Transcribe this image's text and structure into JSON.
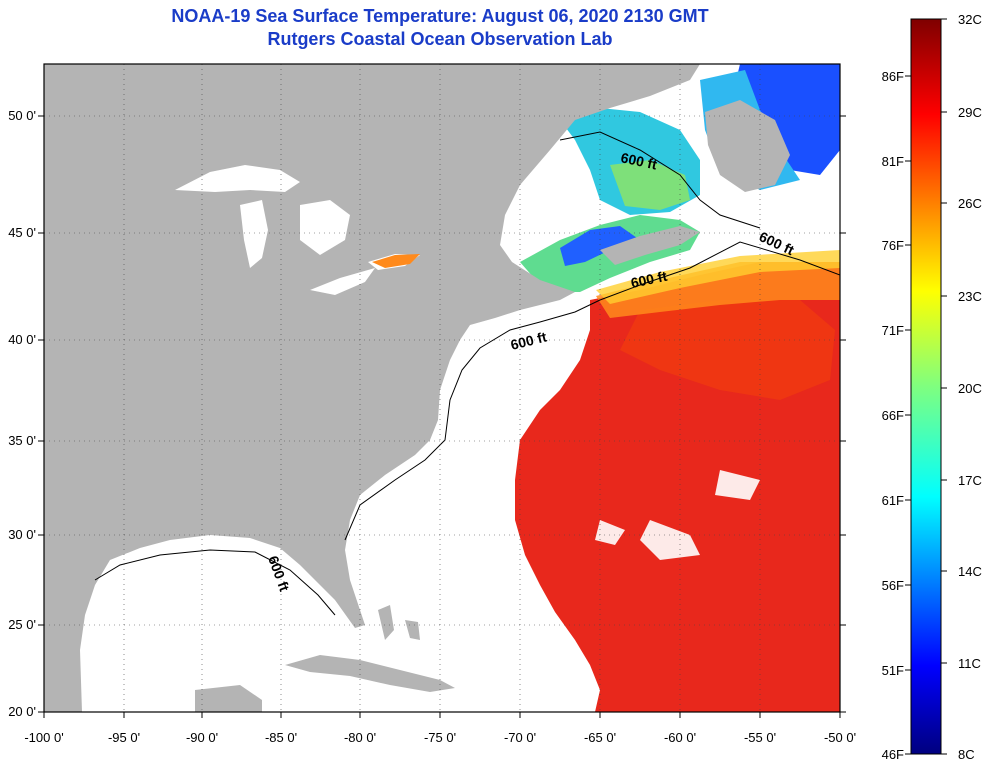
{
  "title": "NOAA-19 Sea Surface Temperature:  August 06, 2020 2130 GMT",
  "subtitle": "Rutgers Coastal Ocean Observation Lab",
  "map": {
    "lon_labels": [
      "-100 0'",
      "-95 0'",
      "-90 0'",
      "-85 0'",
      "-80 0'",
      "-75 0'",
      "-70 0'",
      "-65 0'",
      "-60 0'",
      "-55 0'",
      "-50 0'"
    ],
    "lat_labels": [
      "50 0'",
      "45 0'",
      "40 0'",
      "35 0'",
      "30 0'",
      "25 0'",
      "20 0'"
    ],
    "contour_label": "600 ft",
    "colors": {
      "land": "#b4b4b4",
      "no_data": "#ffffff",
      "water_warm": "#e8281c"
    }
  },
  "colorbar": {
    "celsius_labels": [
      "32C",
      "29C",
      "26C",
      "23C",
      "20C",
      "17C",
      "14C",
      "11C",
      "8C"
    ],
    "fahrenheit_labels": [
      "86F",
      "81F",
      "76F",
      "71F",
      "66F",
      "61F",
      "56F",
      "51F",
      "46F"
    ]
  }
}
